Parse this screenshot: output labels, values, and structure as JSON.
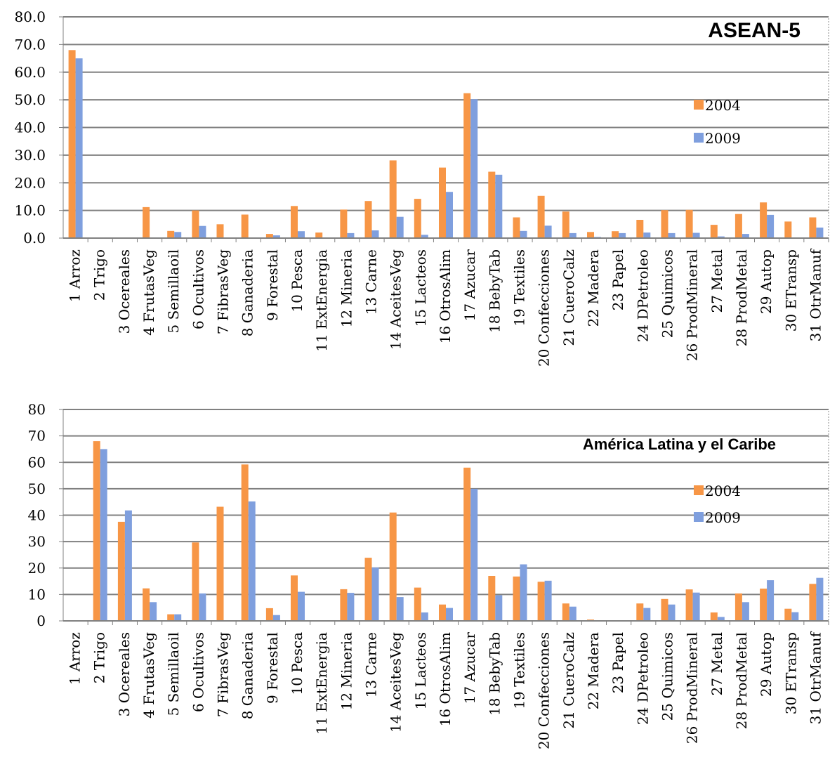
{
  "chart_data": [
    {
      "type": "bar",
      "title": "ASEAN-5",
      "categories": [
        "1 Arroz",
        "2 Trigo",
        "3 Ocereales",
        "4 FrutasVeg",
        "5 Semillaoil",
        "6 Ocultivos",
        "7 FibrasVeg",
        "8 Ganaderia",
        "9 Forestal",
        "10 Pesca",
        "11 ExtEnergia",
        "12 Mineria",
        "13 Carne",
        "14 AceitesVeg",
        "15 Lacteos",
        "16 OtrosAlim",
        "17 Azucar",
        "18 BebyTab",
        "19 Textiles",
        "20 Confecciones",
        "21 CueroCalz",
        "22 Madera",
        "23 Papel",
        "24 DPetroleo",
        "25 Quimicos",
        "26 ProdMineral",
        "27 Metal",
        "28 ProdMetal",
        "29 Autop",
        "30 ETransp",
        "31 OtrManuf"
      ],
      "series": [
        {
          "name": "2004",
          "color": "#f79646",
          "values": [
            68.0,
            0,
            0,
            11.2,
            2.6,
            10.0,
            5.0,
            8.5,
            1.5,
            11.6,
            2.0,
            10.3,
            13.4,
            28.1,
            14.2,
            25.5,
            52.4,
            24.0,
            7.5,
            15.3,
            9.6,
            2.2,
            2.5,
            6.6,
            10.1,
            10.2,
            4.8,
            8.7,
            12.9,
            6.0,
            7.5
          ]
        },
        {
          "name": "2009",
          "color": "#7f9fde",
          "values": [
            65.0,
            0,
            0,
            0,
            2.2,
            4.4,
            0,
            0,
            1.0,
            2.5,
            0,
            1.8,
            2.8,
            7.7,
            1.2,
            16.7,
            50.2,
            22.9,
            2.6,
            4.5,
            1.8,
            0.4,
            1.8,
            2.0,
            1.8,
            1.9,
            0.6,
            1.5,
            8.4,
            0,
            3.8
          ]
        }
      ],
      "y_tick_labels": [
        "0.0",
        "10.0",
        "20.0",
        "30.0",
        "40.0",
        "50.0",
        "60.0",
        "70.0",
        "80.0"
      ],
      "ylim": [
        0,
        80
      ],
      "grid": true,
      "legend_position": "right"
    },
    {
      "type": "bar",
      "title": "América Latina y el Caribe",
      "categories": [
        "1 Arroz",
        "2 Trigo",
        "3 Ocereales",
        "4 FrutasVeg",
        "5 Semillaoil",
        "6 Ocultivos",
        "7 FibrasVeg",
        "8 Ganaderia",
        "9 Forestal",
        "10 Pesca",
        "11 ExtEnergia",
        "12 Mineria",
        "13 Carne",
        "14 AceitesVeg",
        "15 Lacteos",
        "16 OtrosAlim",
        "17 Azucar",
        "18 BebyTab",
        "19 Textiles",
        "20 Confecciones",
        "21 CueroCalz",
        "22 Madera",
        "23 Papel",
        "24 DPetroleo",
        "25 Quimicos",
        "26 ProdMineral",
        "27 Metal",
        "28 ProdMetal",
        "29 Autop",
        "30 ETransp",
        "31 OtrManuf"
      ],
      "series": [
        {
          "name": "2004",
          "color": "#f79646",
          "values": [
            0,
            68.0,
            37.5,
            12.3,
            2.5,
            29.7,
            43.2,
            59.2,
            4.8,
            17.2,
            0,
            12.0,
            23.9,
            41.0,
            12.6,
            6.2,
            58.0,
            17.0,
            16.8,
            14.8,
            6.6,
            0.5,
            0,
            6.6,
            8.3,
            11.9,
            3.2,
            10.4,
            12.2,
            4.6,
            14.0
          ]
        },
        {
          "name": "2009",
          "color": "#7f9fde",
          "values": [
            0,
            65.0,
            41.8,
            7.1,
            2.5,
            10.4,
            0,
            45.2,
            2.2,
            11.0,
            0,
            10.6,
            20.2,
            9.0,
            3.2,
            4.9,
            50.0,
            9.7,
            21.4,
            15.2,
            5.4,
            0,
            0,
            4.9,
            6.2,
            10.7,
            1.5,
            7.1,
            15.4,
            3.3,
            16.3
          ]
        }
      ],
      "y_tick_labels": [
        "0",
        "10",
        "20",
        "30",
        "40",
        "50",
        "60",
        "70",
        "80"
      ],
      "ylim": [
        0,
        80
      ],
      "grid": true,
      "legend_position": "right"
    }
  ]
}
